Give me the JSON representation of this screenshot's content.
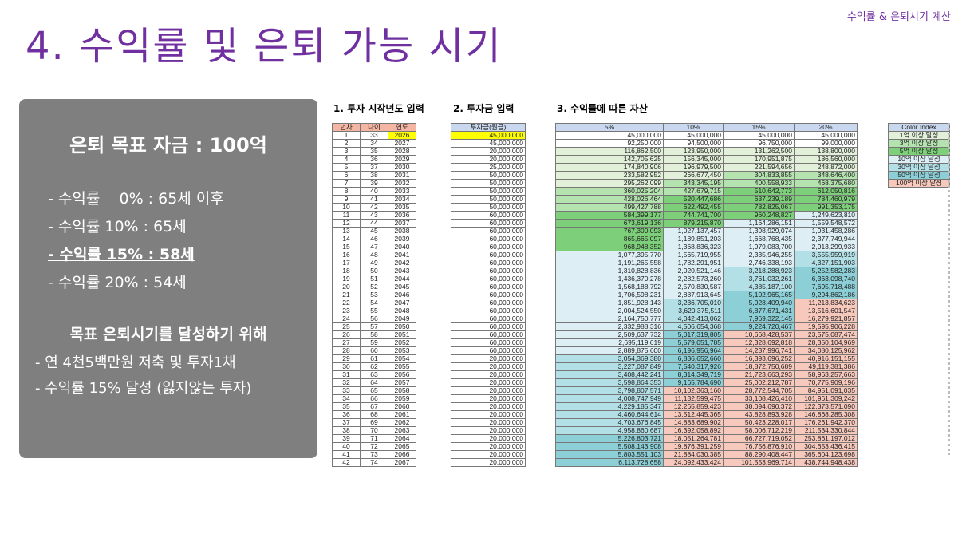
{
  "header": {
    "top_right": "수익률 & 은퇴시기 계산",
    "title": "4. 수익률 및 은퇴 가능 시기"
  },
  "panel": {
    "goal": "은퇴 목표 자금 : 100억",
    "rates": [
      "- 수익률    0% : 65세 이후",
      "- 수익률 10% : 65세",
      "- 수익률 15% : 58세",
      "- 수익률 20% : 54세"
    ],
    "highlight_index": 2,
    "subheading": "목표 은퇴시기를 달성하기 위해",
    "bullets": [
      "- 연 4천5백만원 저축 및 투자1채",
      "- 수익률 15% 달성 (잃지않는 투자)"
    ]
  },
  "sections": {
    "s1": "1. 투자 시작년도 입력",
    "s2": "2. 투자금 입력",
    "s3": "3. 수익률에 따른 자산"
  },
  "table": {
    "headers_left": [
      "년차",
      "나이",
      "연도"
    ],
    "header_invest": "투자금(원금)",
    "headers_rate": [
      "5%",
      "10%",
      "15%",
      "20%"
    ],
    "rows": [
      [
        1,
        33,
        2026,
        "45,000,000",
        "45,000,000",
        "45,000,000",
        "45,000,000",
        "45,000,000"
      ],
      [
        2,
        34,
        2027,
        "45,000,000",
        "92,250,000",
        "94,500,000",
        "96,750,000",
        "99,000,000"
      ],
      [
        3,
        35,
        2028,
        "20,000,000",
        "116,862,500",
        "123,950,000",
        "131,262,500",
        "138,800,000"
      ],
      [
        4,
        36,
        2029,
        "20,000,000",
        "142,705,625",
        "156,345,000",
        "170,951,875",
        "186,560,000"
      ],
      [
        5,
        37,
        2030,
        "25,000,000",
        "174,840,906",
        "196,979,500",
        "221,594,656",
        "248,872,000"
      ],
      [
        6,
        38,
        2031,
        "50,000,000",
        "233,582,952",
        "266,677,450",
        "304,833,855",
        "348,646,400"
      ],
      [
        7,
        39,
        2032,
        "50,000,000",
        "295,262,099",
        "343,345,195",
        "400,558,933",
        "468,375,680"
      ],
      [
        8,
        40,
        2033,
        "50,000,000",
        "360,025,204",
        "427,679,715",
        "510,642,773",
        "612,050,816"
      ],
      [
        9,
        41,
        2034,
        "50,000,000",
        "428,026,464",
        "520,447,686",
        "637,239,189",
        "784,460,979"
      ],
      [
        10,
        42,
        2035,
        "50,000,000",
        "499,427,788",
        "622,492,455",
        "782,825,067",
        "991,353,175"
      ],
      [
        11,
        43,
        2036,
        "60,000,000",
        "584,399,177",
        "744,741,700",
        "960,248,827",
        "1,249,623,810"
      ],
      [
        12,
        44,
        2037,
        "60,000,000",
        "673,619,136",
        "879,215,870",
        "1,164,286,151",
        "1,559,548,572"
      ],
      [
        13,
        45,
        2038,
        "60,000,000",
        "767,300,093",
        "1,027,137,457",
        "1,398,929,074",
        "1,931,458,286"
      ],
      [
        14,
        46,
        2039,
        "60,000,000",
        "865,665,097",
        "1,189,851,203",
        "1,668,768,435",
        "2,377,749,944"
      ],
      [
        15,
        47,
        2040,
        "60,000,000",
        "968,948,352",
        "1,368,836,323",
        "1,979,083,700",
        "2,913,299,933"
      ],
      [
        16,
        48,
        2041,
        "60,000,000",
        "1,077,395,770",
        "1,565,719,955",
        "2,335,946,255",
        "3,555,959,919"
      ],
      [
        17,
        49,
        2042,
        "60,000,000",
        "1,191,265,558",
        "1,782,291,951",
        "2,746,338,193",
        "4,327,151,903"
      ],
      [
        18,
        50,
        2043,
        "60,000,000",
        "1,310,828,836",
        "2,020,521,146",
        "3,218,288,923",
        "5,252,582,283"
      ],
      [
        19,
        51,
        2044,
        "60,000,000",
        "1,436,370,278",
        "2,282,573,260",
        "3,761,032,261",
        "6,363,098,740"
      ],
      [
        20,
        52,
        2045,
        "60,000,000",
        "1,568,188,792",
        "2,570,830,587",
        "4,385,187,100",
        "7,695,718,488"
      ],
      [
        21,
        53,
        2046,
        "60,000,000",
        "1,706,598,231",
        "2,887,913,645",
        "5,102,965,165",
        "9,294,862,186"
      ],
      [
        22,
        54,
        2047,
        "60,000,000",
        "1,851,928,143",
        "3,236,705,010",
        "5,928,409,940",
        "11,213,834,623"
      ],
      [
        23,
        55,
        2048,
        "60,000,000",
        "2,004,524,550",
        "3,620,375,511",
        "6,877,671,431",
        "13,516,601,547"
      ],
      [
        24,
        56,
        2049,
        "60,000,000",
        "2,164,750,777",
        "4,042,413,062",
        "7,969,322,145",
        "16,279,921,857"
      ],
      [
        25,
        57,
        2050,
        "60,000,000",
        "2,332,988,316",
        "4,506,654,368",
        "9,224,720,467",
        "19,595,906,228"
      ],
      [
        26,
        58,
        2051,
        "60,000,000",
        "2,509,637,732",
        "5,017,319,805",
        "10,668,428,537",
        "23,575,087,474"
      ],
      [
        27,
        59,
        2052,
        "60,000,000",
        "2,695,119,619",
        "5,579,051,785",
        "12,328,692,818",
        "28,350,104,969"
      ],
      [
        28,
        60,
        2053,
        "60,000,000",
        "2,889,875,600",
        "6,196,956,964",
        "14,237,996,741",
        "34,080,125,962"
      ],
      [
        29,
        61,
        2054,
        "20,000,000",
        "3,054,369,380",
        "6,836,652,660",
        "16,393,696,252",
        "40,916,151,155"
      ],
      [
        30,
        62,
        2055,
        "20,000,000",
        "3,227,087,849",
        "7,540,317,926",
        "18,872,750,689",
        "49,119,381,386"
      ],
      [
        31,
        63,
        2056,
        "20,000,000",
        "3,408,442,241",
        "8,314,349,719",
        "21,723,663,293",
        "58,963,257,663"
      ],
      [
        32,
        64,
        2057,
        "20,000,000",
        "3,598,864,353",
        "9,165,784,690",
        "25,002,212,787",
        "70,775,909,196"
      ],
      [
        33,
        65,
        2058,
        "20,000,000",
        "3,798,807,571",
        "10,102,363,160",
        "28,772,544,705",
        "84,951,091,035"
      ],
      [
        34,
        66,
        2059,
        "20,000,000",
        "4,008,747,949",
        "11,132,599,475",
        "33,108,426,410",
        "101,961,309,242"
      ],
      [
        35,
        67,
        2060,
        "20,000,000",
        "4,229,185,347",
        "12,265,859,423",
        "38,094,690,372",
        "122,373,571,090"
      ],
      [
        36,
        68,
        2061,
        "20,000,000",
        "4,460,644,614",
        "13,512,445,365",
        "43,828,893,928",
        "146,868,285,308"
      ],
      [
        37,
        69,
        2062,
        "20,000,000",
        "4,703,676,845",
        "14,883,689,902",
        "50,423,228,017",
        "176,261,942,370"
      ],
      [
        38,
        70,
        2063,
        "20,000,000",
        "4,958,860,687",
        "16,392,058,892",
        "58,006,712,219",
        "211,534,330,844"
      ],
      [
        39,
        71,
        2064,
        "20,000,000",
        "5,226,803,721",
        "18,051,264,781",
        "66,727,719,052",
        "253,861,197,012"
      ],
      [
        40,
        72,
        2065,
        "20,000,000",
        "5,508,143,908",
        "19,876,391,259",
        "76,756,876,910",
        "304,653,436,415"
      ],
      [
        41,
        73,
        2066,
        "20,000,000",
        "5,803,551,103",
        "21,884,030,385",
        "88,290,408,447",
        "365,604,123,698"
      ],
      [
        42,
        74,
        2067,
        "20,000,000",
        "6,113,728,658",
        "24,092,433,424",
        "101,553,969,714",
        "438,744,948,438"
      ]
    ]
  },
  "legend": {
    "title": "Color Index",
    "items": [
      {
        "label": "1억 이상 달성",
        "color": "#e2f0d9"
      },
      {
        "label": "3억 이상 달성",
        "color": "#b5e3b0"
      },
      {
        "label": "5억 이상 달성",
        "color": "#7dcf7a"
      },
      {
        "label": "10억 이상 달성",
        "color": "#ddeef4"
      },
      {
        "label": "30억 이상 달성",
        "color": "#b3dfe6"
      },
      {
        "label": "50억 이상 달성",
        "color": "#8ccfd6"
      },
      {
        "label": "100억 이상 달성",
        "color": "#f7c8bc"
      }
    ]
  },
  "colors": {
    "accent": "#7030a0",
    "panel": "#7f7f7f",
    "start_year_highlight": "#ffff00"
  }
}
